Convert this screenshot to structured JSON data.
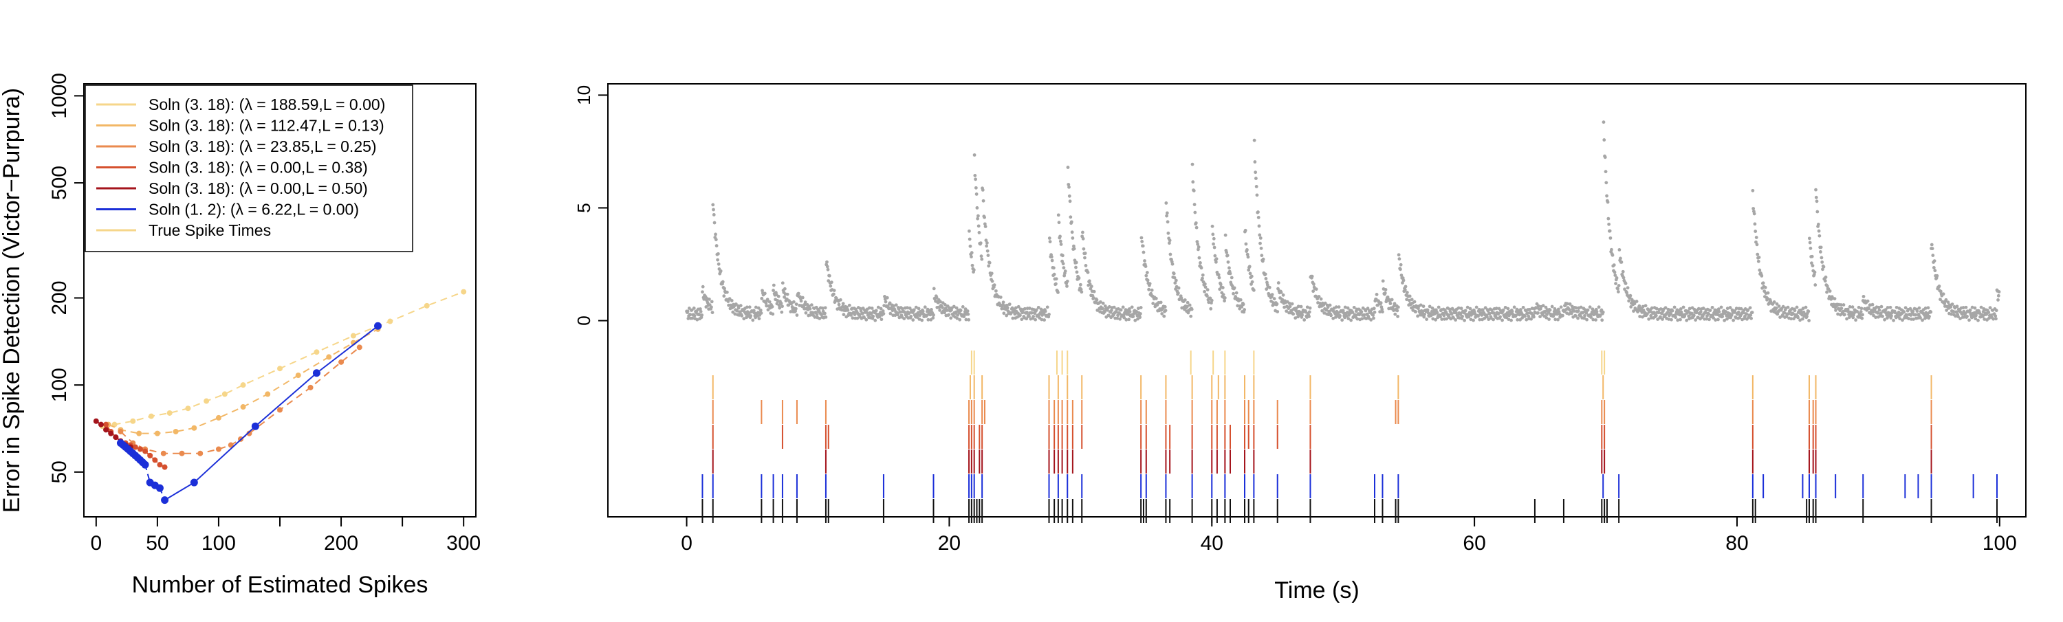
{
  "chart_data": [
    {
      "type": "scatter",
      "xlabel": "Number of Estimated Spikes",
      "ylabel": "Error in Spike Detection (Victor−Purpura)",
      "xlim": [
        -10,
        310
      ],
      "ylim": [
        35,
        1100
      ],
      "y_scale": "log",
      "x_ticks": [
        0,
        50,
        100,
        200,
        300
      ],
      "x_minor_ticks": [
        150,
        250
      ],
      "y_ticks": [
        50,
        100,
        200,
        500,
        1000
      ],
      "grid": false,
      "legend_position": "top-left",
      "legend": [
        {
          "label": "Soln (3. 18): (λ = 188.59,L = 0.00)",
          "color": "#f6d68a"
        },
        {
          "label": "Soln (3. 18): (λ = 112.47,L = 0.13)",
          "color": "#f2b766"
        },
        {
          "label": "Soln (3. 18): (λ = 23.85,L = 0.25)",
          "color": "#ea8a4e"
        },
        {
          "label": "Soln (3. 18): (λ = 0.00,L = 0.38)",
          "color": "#d5502e"
        },
        {
          "label": "Soln (3. 18): (λ = 0.00,L = 0.50)",
          "color": "#a4141c"
        },
        {
          "label": "Soln (1. 2): (λ = 6.22,L = 0.00)",
          "color": "#1b2fd8"
        },
        {
          "label": "True Spike Times",
          "color": "#f6d68a"
        }
      ],
      "series": [
        {
          "color": "#f6d68a",
          "x": [
            5,
            15,
            30,
            45,
            60,
            75,
            90,
            105,
            120,
            150,
            180,
            210,
            240,
            270,
            300
          ],
          "y": [
            72,
            73,
            75,
            78,
            80,
            83,
            88,
            93,
            100,
            114,
            130,
            148,
            166,
            188,
            210
          ]
        },
        {
          "color": "#f2b766",
          "x": [
            10,
            20,
            35,
            50,
            65,
            80,
            100,
            120,
            140,
            165,
            190,
            210,
            230
          ],
          "y": [
            73,
            70,
            68,
            68,
            69,
            71,
            77,
            84,
            93,
            108,
            125,
            140,
            156
          ]
        },
        {
          "color": "#ea8a4e",
          "x": [
            20,
            30,
            40,
            55,
            70,
            85,
            100,
            110,
            118,
            125,
            150,
            175,
            200,
            215
          ],
          "y": [
            69,
            63,
            60,
            58,
            58,
            58,
            60,
            62,
            65,
            68,
            82,
            98,
            120,
            135
          ]
        },
        {
          "color": "#d5502e",
          "x": [
            8,
            12,
            16,
            20,
            24,
            28,
            32,
            36,
            40,
            44,
            48,
            52,
            56
          ],
          "y": [
            73,
            69,
            66,
            64,
            63,
            62,
            61,
            60,
            59,
            57,
            55,
            53,
            52
          ]
        },
        {
          "color": "#a4141c",
          "x": [
            0,
            4,
            8,
            12,
            16,
            20,
            24,
            28
          ],
          "y": [
            75,
            73,
            70,
            68,
            66,
            64,
            62,
            61
          ]
        },
        {
          "color": "#1b2fd8",
          "x": [
            20,
            22,
            24,
            26,
            28,
            30,
            32,
            34,
            36,
            38,
            40,
            44,
            48,
            52,
            56,
            80,
            130,
            180,
            230
          ],
          "y": [
            63,
            62,
            61,
            60,
            59,
            58,
            57,
            56,
            55,
            54,
            53,
            46,
            45,
            44,
            40,
            46,
            72,
            110,
            160
          ]
        }
      ]
    },
    {
      "type": "scatter",
      "xlabel": "Time (s)",
      "ylabel": "",
      "xlim": [
        -6,
        102
      ],
      "ylim": [
        -8.7,
        10.5
      ],
      "x_ticks": [
        0,
        20,
        40,
        60,
        80,
        100
      ],
      "y_ticks": [
        0,
        5,
        10
      ],
      "grid": false,
      "trace": {
        "name": "fluorescence",
        "color": "#a6a6a6",
        "baseline": 0.3,
        "spikes": [
          {
            "t": 1.2,
            "amp": 1.0
          },
          {
            "t": 2.0,
            "amp": 4.7
          },
          {
            "t": 5.7,
            "amp": 1.0
          },
          {
            "t": 6.6,
            "amp": 0.9
          },
          {
            "t": 7.3,
            "amp": 0.9
          },
          {
            "t": 8.4,
            "amp": 0.8
          },
          {
            "t": 10.6,
            "amp": 2.5
          },
          {
            "t": 15.0,
            "amp": 0.7
          },
          {
            "t": 18.8,
            "amp": 0.9
          },
          {
            "t": 21.5,
            "amp": 3.6
          },
          {
            "t": 21.9,
            "amp": 5.4
          },
          {
            "t": 22.5,
            "amp": 3.5
          },
          {
            "t": 27.6,
            "amp": 3.5
          },
          {
            "t": 28.3,
            "amp": 3.4
          },
          {
            "t": 29.0,
            "amp": 5.7
          },
          {
            "t": 30.1,
            "amp": 2.9
          },
          {
            "t": 34.6,
            "amp": 3.8
          },
          {
            "t": 36.5,
            "amp": 5.0
          },
          {
            "t": 38.5,
            "amp": 6.6
          },
          {
            "t": 40.0,
            "amp": 3.7
          },
          {
            "t": 41.0,
            "amp": 2.8
          },
          {
            "t": 42.5,
            "amp": 3.6
          },
          {
            "t": 43.2,
            "amp": 6.9
          },
          {
            "t": 45.0,
            "amp": 1.0
          },
          {
            "t": 47.5,
            "amp": 1.9
          },
          {
            "t": 52.4,
            "amp": 0.8
          },
          {
            "t": 53.0,
            "amp": 1.0
          },
          {
            "t": 54.2,
            "amp": 2.6
          },
          {
            "t": 64.6,
            "amp": 0.3
          },
          {
            "t": 66.8,
            "amp": 0.4
          },
          {
            "t": 69.8,
            "amp": 9.0
          },
          {
            "t": 71.0,
            "amp": 2.0
          },
          {
            "t": 81.2,
            "amp": 5.3
          },
          {
            "t": 85.5,
            "amp": 3.4
          },
          {
            "t": 86.0,
            "amp": 4.2
          },
          {
            "t": 89.6,
            "amp": 0.6
          },
          {
            "t": 94.8,
            "amp": 3.2
          },
          {
            "t": 99.8,
            "amp": 1.0
          }
        ]
      },
      "rasters": [
        {
          "color": "#f6d68a",
          "spikes": [
            21.7,
            21.9,
            28.2,
            28.6,
            29.0,
            38.4,
            40.1,
            41.0,
            43.2,
            69.7,
            69.9
          ]
        },
        {
          "color": "#f2b766",
          "spikes": [
            2.0,
            21.6,
            21.9,
            22.5,
            27.6,
            28.3,
            29.0,
            30.1,
            34.6,
            36.5,
            38.5,
            40.0,
            40.5,
            41.0,
            42.5,
            43.2,
            47.5,
            54.2,
            69.8,
            81.2,
            85.5,
            86.0,
            94.8
          ]
        },
        {
          "color": "#ea8a4e",
          "spikes": [
            2.0,
            5.7,
            7.3,
            8.4,
            10.6,
            21.5,
            21.7,
            21.9,
            22.5,
            22.7,
            27.6,
            28.0,
            28.3,
            28.6,
            29.0,
            29.4,
            30.1,
            34.6,
            35.0,
            36.5,
            38.5,
            40.0,
            40.4,
            41.0,
            42.5,
            42.8,
            43.2,
            45.0,
            47.5,
            54.0,
            54.2,
            69.7,
            69.9,
            81.2,
            85.5,
            85.8,
            86.0,
            94.8
          ]
        },
        {
          "color": "#d5502e",
          "spikes": [
            2.0,
            7.3,
            10.6,
            10.8,
            21.5,
            21.7,
            21.9,
            22.3,
            22.5,
            27.6,
            28.0,
            28.3,
            28.6,
            29.0,
            29.4,
            30.1,
            34.6,
            35.0,
            36.5,
            36.8,
            38.5,
            40.0,
            40.4,
            41.0,
            41.4,
            42.5,
            42.8,
            43.2,
            45.0,
            47.5,
            69.7,
            69.9,
            81.2,
            85.5,
            85.8,
            86.0,
            94.8
          ]
        },
        {
          "color": "#a4141c",
          "spikes": [
            2.0,
            10.6,
            21.5,
            21.7,
            21.9,
            22.3,
            22.5,
            27.6,
            28.0,
            28.3,
            28.6,
            29.0,
            29.4,
            34.6,
            35.0,
            36.5,
            36.8,
            38.5,
            40.0,
            40.4,
            41.0,
            41.4,
            42.5,
            43.2,
            47.5,
            69.7,
            69.9,
            81.2,
            85.5,
            85.8,
            86.0,
            94.8
          ]
        },
        {
          "color": "#1b2fd8",
          "spikes": [
            1.2,
            2.0,
            5.7,
            6.6,
            7.3,
            8.4,
            10.6,
            15.0,
            18.8,
            21.5,
            21.7,
            21.9,
            22.5,
            27.6,
            28.3,
            29.0,
            30.1,
            34.6,
            35.0,
            36.5,
            38.5,
            40.0,
            41.0,
            42.5,
            43.2,
            45.0,
            47.5,
            52.4,
            53.0,
            54.2,
            69.8,
            71.0,
            81.2,
            82.0,
            85.0,
            85.5,
            86.0,
            87.5,
            89.6,
            92.8,
            93.8,
            94.8,
            98.0,
            99.8
          ]
        },
        {
          "color": "#111111",
          "spikes": [
            1.2,
            2.0,
            5.7,
            6.6,
            7.3,
            8.4,
            10.6,
            10.8,
            15.0,
            18.8,
            21.5,
            21.7,
            21.9,
            22.1,
            22.3,
            22.5,
            27.6,
            28.0,
            28.3,
            28.6,
            29.0,
            29.4,
            30.1,
            34.6,
            34.8,
            35.0,
            36.5,
            36.8,
            38.5,
            40.0,
            40.4,
            41.0,
            41.4,
            42.5,
            42.8,
            43.2,
            45.0,
            47.5,
            52.4,
            53.0,
            54.0,
            54.2,
            64.6,
            66.8,
            69.7,
            69.9,
            70.1,
            71.0,
            81.2,
            81.4,
            85.3,
            85.5,
            85.8,
            86.0,
            89.6,
            94.8,
            99.8
          ]
        }
      ]
    }
  ]
}
